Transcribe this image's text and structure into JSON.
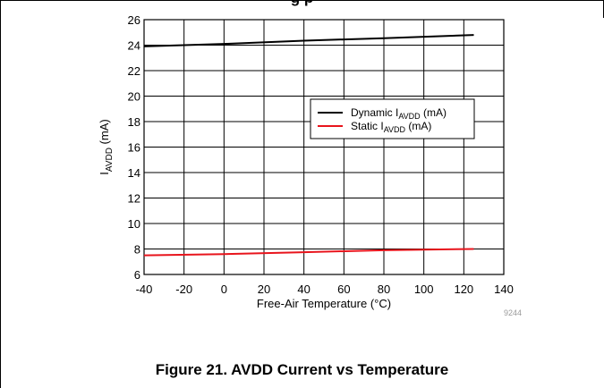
{
  "header": {
    "partial_title": "g                                   p"
  },
  "caption": "Figure 21. AVDD Current vs Temperature",
  "figure_code": "9244",
  "chart_data": {
    "type": "line",
    "xlabel": "Free-Air Temperature (°C)",
    "ylabel": {
      "base": "I",
      "sub": "AVDD",
      "rest": " (mA)"
    },
    "xlim": [
      -40,
      140
    ],
    "ylim": [
      6,
      26
    ],
    "x_ticks": [
      -40,
      -20,
      0,
      20,
      40,
      60,
      80,
      100,
      120,
      140
    ],
    "y_ticks": [
      6,
      8,
      10,
      12,
      14,
      16,
      18,
      20,
      22,
      24,
      26
    ],
    "grid": true,
    "legend_position": "right-center",
    "series": [
      {
        "name": {
          "pre": "Dynamic I",
          "sub": "AVDD",
          "post": " (mA)"
        },
        "color": "#000000",
        "x": [
          -40,
          0,
          40,
          80,
          125
        ],
        "y": [
          23.9,
          24.1,
          24.35,
          24.55,
          24.8
        ]
      },
      {
        "name": {
          "pre": "Static I",
          "sub": "AVDD",
          "post": " (mA)"
        },
        "color": "#e8141c",
        "x": [
          -40,
          0,
          40,
          80,
          125
        ],
        "y": [
          7.5,
          7.6,
          7.75,
          7.9,
          8.0
        ]
      }
    ]
  }
}
